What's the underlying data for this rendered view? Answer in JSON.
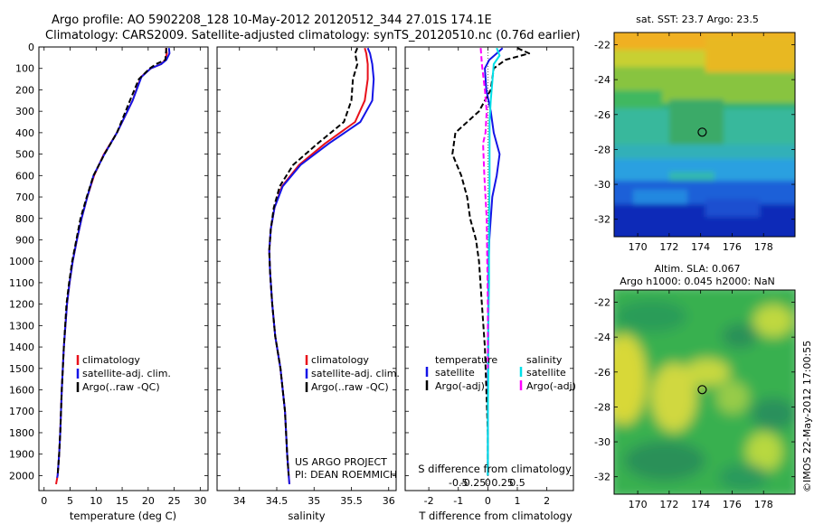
{
  "header": {
    "line1": "Argo profile: AO 5902208_128 10-May-2012 20120512_344 27.01S 174.1E",
    "line2": "Climatology: CARS2009. Satellite-adjusted climatology: synTS_20120510.nc (0.76d earlier)"
  },
  "colors": {
    "climatology": "#e8101a",
    "satellite": "#1414e6",
    "argo": "#000000",
    "magenta": "#ff00ff",
    "cyan": "#00e0e8"
  },
  "chart_data": [
    {
      "type": "line",
      "id": "temperature",
      "xlabel": "temperature (deg C)",
      "ylabel": "",
      "xlim": [
        -1,
        31.5
      ],
      "ylim": [
        2070,
        0
      ],
      "xticks": [
        0,
        5,
        10,
        15,
        20,
        25,
        30
      ],
      "yticks": [
        0,
        100,
        200,
        300,
        400,
        500,
        600,
        700,
        800,
        900,
        1000,
        1100,
        1200,
        1300,
        1400,
        1500,
        1600,
        1700,
        1800,
        1900,
        2000
      ],
      "legend": {
        "placement": "lower-center",
        "entries": [
          "climatology",
          "satellite-adj. clim.",
          "Argo(..raw -QC)"
        ]
      },
      "series": [
        {
          "name": "climatology",
          "color": "#e8101a",
          "dash": "",
          "x": [
            23.4,
            23.6,
            23.3,
            22.5,
            20.5,
            18.6,
            17,
            14,
            11.5,
            9.6,
            8.3,
            7.2,
            6.3,
            5.5,
            4.9,
            4.4,
            3.8,
            3.4,
            3.1,
            2.9,
            2.6,
            2.3
          ],
          "y": [
            5,
            30,
            60,
            80,
            100,
            140,
            250,
            400,
            500,
            600,
            700,
            800,
            900,
            1000,
            1100,
            1200,
            1400,
            1600,
            1800,
            1900,
            2000,
            2040
          ]
        },
        {
          "name": "satellite-adj. clim.",
          "color": "#1414e6",
          "dash": "",
          "x": [
            24,
            24.1,
            23.5,
            22.5,
            20.5,
            18.7,
            17,
            14,
            11.6,
            9.5,
            8.3,
            7.2,
            6.3,
            5.5,
            4.9,
            4.4,
            3.8,
            3.4,
            3.1,
            2.9,
            2.6,
            2.5
          ],
          "y": [
            5,
            30,
            60,
            80,
            100,
            140,
            250,
            400,
            500,
            600,
            700,
            800,
            900,
            1000,
            1100,
            1200,
            1400,
            1600,
            1800,
            1900,
            2000,
            2010
          ]
        },
        {
          "name": "Argo(..raw -QC)",
          "color": "#000000",
          "dash": "6 3",
          "x": [
            23.5,
            23.4,
            23.3,
            21.5,
            20.3,
            18.2,
            16.5,
            14,
            11.6,
            9.5,
            8.2,
            7,
            6.2,
            5.4,
            4.8,
            4.3,
            3.8,
            3.4,
            3.1,
            2.9,
            2.6
          ],
          "y": [
            5,
            30,
            60,
            80,
            100,
            150,
            250,
            400,
            500,
            600,
            700,
            800,
            900,
            1000,
            1100,
            1200,
            1400,
            1600,
            1800,
            1900,
            2000
          ]
        }
      ]
    },
    {
      "type": "line",
      "id": "salinity",
      "xlabel": "salinity",
      "ylabel": "",
      "xlim": [
        33.7,
        36.1
      ],
      "ylim": [
        2070,
        0
      ],
      "xticks": [
        34,
        34.5,
        35,
        35.5,
        36
      ],
      "xticklabels": [
        "34",
        "34.5",
        "35",
        "35.5",
        "36"
      ],
      "legend": {
        "placement": "lower-center",
        "entries": [
          "climatology",
          "satellite-adj. clim.",
          "Argo(..raw -QC)"
        ]
      },
      "annotation": [
        "US ARGO PROJECT",
        "PI: DEAN ROEMMICH"
      ],
      "series": [
        {
          "name": "climatology",
          "color": "#e8101a",
          "dash": "",
          "x": [
            35.68,
            35.7,
            35.72,
            35.72,
            35.68,
            35.55,
            35.15,
            34.8,
            34.57,
            34.47,
            34.42,
            34.4,
            34.41,
            34.44,
            34.48,
            34.55,
            34.61,
            34.64,
            34.66,
            34.67
          ],
          "y": [
            5,
            30,
            80,
            150,
            250,
            350,
            450,
            550,
            650,
            750,
            850,
            950,
            1050,
            1200,
            1350,
            1500,
            1700,
            1900,
            2000,
            2040
          ]
        },
        {
          "name": "satellite-adj. clim.",
          "color": "#1414e6",
          "dash": "",
          "x": [
            35.72,
            35.75,
            35.78,
            35.8,
            35.78,
            35.62,
            35.2,
            34.82,
            34.58,
            34.47,
            34.42,
            34.4,
            34.41,
            34.44,
            34.48,
            34.55,
            34.61,
            34.64,
            34.66,
            34.67
          ],
          "y": [
            5,
            30,
            80,
            150,
            250,
            350,
            450,
            550,
            650,
            750,
            850,
            950,
            1050,
            1200,
            1350,
            1500,
            1700,
            1900,
            2000,
            2040
          ]
        },
        {
          "name": "Argo(..raw -QC)",
          "color": "#000000",
          "dash": "6 3",
          "x": [
            35.58,
            35.55,
            35.58,
            35.52,
            35.5,
            35.4,
            35.05,
            34.72,
            34.54,
            34.46,
            34.42,
            34.4,
            34.41,
            34.44,
            34.48,
            34.55,
            34.61,
            34.64,
            34.66
          ],
          "y": [
            5,
            30,
            80,
            150,
            250,
            350,
            450,
            550,
            650,
            750,
            850,
            950,
            1050,
            1200,
            1350,
            1500,
            1700,
            1900,
            2000
          ]
        }
      ]
    },
    {
      "type": "line",
      "id": "difference",
      "xlabel": "T difference from climatology",
      "xlabel_top": "S difference from climatology",
      "xlim": [
        -2.8,
        2.9
      ],
      "ylim": [
        2070,
        0
      ],
      "xticks": [
        -2,
        -1,
        0,
        1,
        2
      ],
      "sticks": [
        -0.5,
        -0.25,
        0,
        0.25,
        0.5
      ],
      "sticklabels": [
        "-0.5",
        "-0.25",
        "0",
        "0.25",
        "0.5"
      ],
      "legend": {
        "placement": "lower-center",
        "headers": [
          "temperature",
          "salinity"
        ],
        "entries": [
          "satellite",
          "Argo(-adj)",
          "satellite",
          "Argo(-adj)"
        ]
      },
      "series": [
        {
          "name": "satellite",
          "group": "temperature",
          "color": "#1414e6",
          "dash": "",
          "x": [
            0.5,
            0.3,
            0.05,
            -0.1,
            -0.05,
            0.1,
            0.2,
            0.4,
            0.3,
            0.15,
            0.1,
            0.05,
            0.03,
            0.02,
            0.01,
            0,
            0,
            0
          ],
          "y": [
            5,
            30,
            60,
            100,
            200,
            300,
            400,
            500,
            600,
            700,
            800,
            900,
            1000,
            1200,
            1400,
            1600,
            1800,
            2000
          ]
        },
        {
          "name": "Argo(-adj)",
          "group": "temperature",
          "color": "#000000",
          "dash": "6 3",
          "x": [
            1.0,
            1.4,
            0.6,
            0.2,
            0.1,
            -0.3,
            -1.1,
            -1.2,
            -0.9,
            -0.7,
            -0.6,
            -0.4,
            -0.3,
            -0.2,
            -0.1,
            -0.05,
            0,
            0
          ],
          "y": [
            5,
            30,
            60,
            100,
            200,
            300,
            400,
            500,
            600,
            700,
            800,
            900,
            1000,
            1200,
            1400,
            1600,
            1800,
            2000
          ]
        },
        {
          "name": "satellite",
          "group": "salinity",
          "color": "#00e0e8",
          "dash": "",
          "x": [
            0.15,
            0.2,
            0.1,
            0.08,
            0.05,
            0.03,
            0.03,
            0.03,
            0.02,
            0.02,
            0.02,
            0.01,
            0.01,
            0,
            0,
            0
          ],
          "y": [
            5,
            40,
            80,
            150,
            250,
            350,
            500,
            650,
            800,
            950,
            1100,
            1300,
            1500,
            1700,
            1900,
            2000
          ]
        },
        {
          "name": "Argo(-adj)",
          "group": "salinity",
          "color": "#ff00ff",
          "dash": "6 3",
          "x": [
            -0.12,
            -0.1,
            -0.05,
            -0.02,
            -0.04,
            -0.08,
            -0.06,
            -0.02,
            -0.01,
            0,
            0
          ],
          "y": [
            5,
            80,
            200,
            300,
            400,
            450,
            600,
            800,
            1000,
            1200,
            1500
          ]
        }
      ]
    },
    {
      "type": "heatmap",
      "id": "sst-map",
      "title": "sat. SST: 23.7  Argo: 23.5",
      "xlim": [
        168.5,
        180
      ],
      "ylim": [
        -33,
        -21.3
      ],
      "xticks": [
        170,
        172,
        174,
        176,
        178
      ],
      "yticks": [
        -22,
        -24,
        -26,
        -28,
        -30,
        -32
      ],
      "marker": {
        "lon": 174.1,
        "lat": -27.01
      }
    },
    {
      "type": "heatmap",
      "id": "sla-map",
      "title": "Altim. SLA: 0.067",
      "subtitle": "Argo h1000: 0.045 h2000: NaN",
      "xlim": [
        168.5,
        180
      ],
      "ylim": [
        -33,
        -21.3
      ],
      "xticks": [
        170,
        172,
        174,
        176,
        178
      ],
      "yticks": [
        -22,
        -24,
        -26,
        -28,
        -30,
        -32
      ],
      "marker": {
        "lon": 174.1,
        "lat": -27.01
      }
    }
  ],
  "credit": "©IMOS 22-May-2012 17:00:55"
}
